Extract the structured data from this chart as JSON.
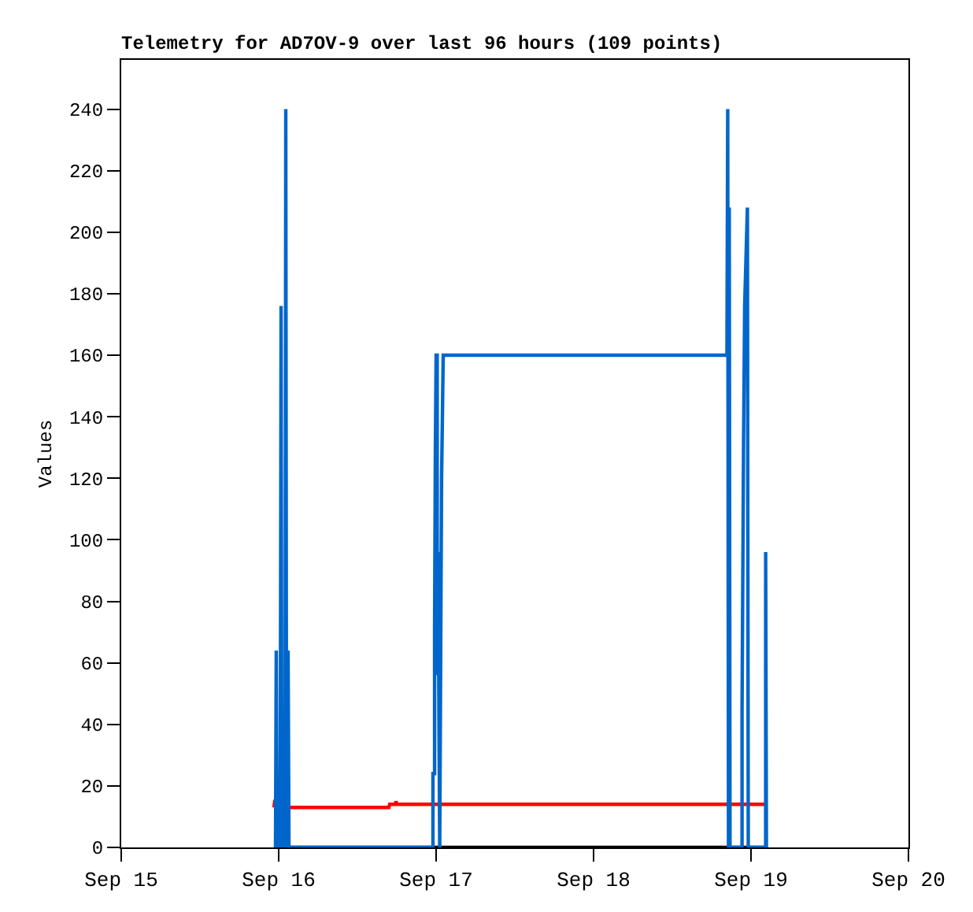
{
  "chart_data": {
    "type": "line",
    "title": "Telemetry for AD7OV-9 over last 96 hours (109 points)",
    "ylabel": "Values",
    "series": [
      {
        "color": "#000000",
        "x": [
          "--09-15T23:17",
          "--09-19T02:21"
        ],
        "values": [
          0,
          0
        ]
      },
      {
        "color": "#ff0000",
        "x": [
          "--09-15T23:17",
          "--09-15T23:24",
          "--09-16T01:12",
          "--09-16T01:19",
          "--09-16T16:48",
          "--09-16T16:55",
          "--09-16T17:46",
          "--09-16T17:53",
          "--09-16T18:00",
          "--09-19T02:10"
        ],
        "values": [
          13,
          15,
          15,
          13,
          13,
          14,
          14,
          15,
          14,
          14
        ]
      },
      {
        "color": "#0066cc",
        "x": [
          "--09-15T23:31",
          "--09-15T23:38",
          "--09-15T23:46",
          "--09-16T00:14",
          "--09-16T00:22",
          "--09-16T00:29",
          "--09-16T00:58",
          "--09-16T01:05",
          "--09-16T01:12",
          "--09-16T01:26",
          "--09-16T01:34",
          "--09-16T23:31",
          "--09-16T23:31",
          "--09-16T23:46",
          "--09-16T23:46",
          "--09-16T23:53",
          "--09-17T00:00",
          "--09-17T00:10",
          "--09-17T00:10",
          "--09-17T00:19",
          "--09-17T00:26",
          "--09-17T00:33",
          "--09-17T00:50",
          "--09-17T01:05",
          "--09-18T20:20",
          "--09-18T20:27",
          "--09-18T20:34",
          "--09-18T20:41",
          "--09-18T20:48",
          "--09-18T22:38",
          "--09-18T22:38",
          "--09-18T22:52",
          "--09-18T23:02",
          "--09-18T23:27",
          "--09-18T23:35",
          "--09-19T02:14",
          "--09-19T02:14",
          "--09-19T02:21"
        ],
        "values": [
          0,
          64,
          0,
          0,
          176,
          0,
          0,
          240,
          0,
          64,
          0,
          0,
          24,
          24,
          72,
          128,
          160,
          160,
          56,
          96,
          40,
          0,
          120,
          160,
          160,
          240,
          0,
          208,
          0,
          0,
          44,
          132,
          176,
          208,
          0,
          0,
          96,
          0
        ]
      }
    ],
    "xlim": [
      "--09-15",
      "--09-20"
    ],
    "xticks": [
      {
        "value": "--09-15",
        "label": "Sep 15"
      },
      {
        "value": "--09-16",
        "label": "Sep 16"
      },
      {
        "value": "--09-17",
        "label": "Sep 17"
      },
      {
        "value": "--09-18",
        "label": "Sep 18"
      },
      {
        "value": "--09-19",
        "label": "Sep 19"
      },
      {
        "value": "--09-20",
        "label": "Sep 20"
      }
    ],
    "ylim": [
      0,
      256
    ],
    "yticks": [
      0,
      20,
      40,
      60,
      80,
      100,
      120,
      140,
      160,
      180,
      200,
      220,
      240
    ],
    "marker": "none",
    "line_style": "solid"
  }
}
